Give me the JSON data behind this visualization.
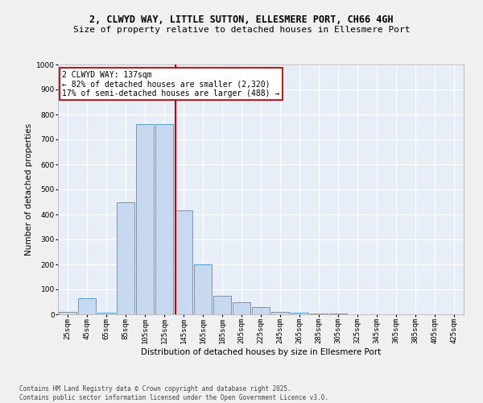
{
  "title_line1": "2, CLWYD WAY, LITTLE SUTTON, ELLESMERE PORT, CH66 4GH",
  "title_line2": "Size of property relative to detached houses in Ellesmere Port",
  "xlabel": "Distribution of detached houses by size in Ellesmere Port",
  "ylabel": "Number of detached properties",
  "bar_categories": [
    "25sqm",
    "45sqm",
    "65sqm",
    "85sqm",
    "105sqm",
    "125sqm",
    "145sqm",
    "165sqm",
    "185sqm",
    "205sqm",
    "225sqm",
    "245sqm",
    "265sqm",
    "285sqm",
    "305sqm",
    "325sqm",
    "345sqm",
    "365sqm",
    "385sqm",
    "405sqm",
    "425sqm"
  ],
  "bar_values": [
    10,
    65,
    8,
    450,
    760,
    760,
    415,
    200,
    75,
    50,
    30,
    10,
    5,
    2,
    2,
    1,
    1,
    1,
    1,
    1,
    1
  ],
  "bar_color": "#c6d9f0",
  "bar_edge_color": "#5b9bd5",
  "vline_color": "#cc0000",
  "ylim": [
    0,
    1000
  ],
  "yticks": [
    0,
    100,
    200,
    300,
    400,
    500,
    600,
    700,
    800,
    900,
    1000
  ],
  "annotation_title": "2 CLWYD WAY: 137sqm",
  "annotation_line1": "← 82% of detached houses are smaller (2,320)",
  "annotation_line2": "17% of semi-detached houses are larger (488) →",
  "annotation_box_color": "#ffffff",
  "annotation_box_edge": "#cc0000",
  "bg_color": "#e8eef8",
  "fig_bg_color": "#f0f0f0",
  "footer_line1": "Contains HM Land Registry data © Crown copyright and database right 2025.",
  "footer_line2": "Contains public sector information licensed under the Open Government Licence v3.0.",
  "title_fontsize": 8.5,
  "subtitle_fontsize": 8,
  "axis_label_fontsize": 7.5,
  "tick_fontsize": 6.5,
  "annotation_fontsize": 7,
  "footer_fontsize": 5.5
}
